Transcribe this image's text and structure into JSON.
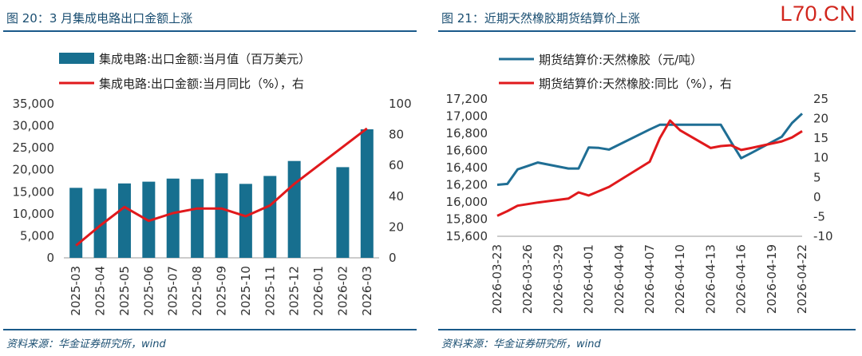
{
  "watermark": "L70.CN",
  "left": {
    "title": "图 20：3 月集成电路出口金额上涨",
    "source": "资料来源：华金证券研究所，wind"
  },
  "right": {
    "title": "图 21：近期天然橡胶期货结算价上涨",
    "source": "资料来源：华金证券研究所，wind"
  },
  "colors": {
    "bar": "#176f8f",
    "line_red": "#e0191c",
    "line_blue": "#1f6e94"
  },
  "chart_data": [
    {
      "type": "bar",
      "title": "",
      "categories": [
        "2025-03",
        "2025-04",
        "2025-05",
        "2025-06",
        "2025-07",
        "2025-08",
        "2025-09",
        "2025-10",
        "2025-11",
        "2025-12",
        "2026-01",
        "2026-02",
        "2026-03"
      ],
      "series": [
        {
          "name": "集成电路:出口金额:当月值（百万美元）",
          "kind": "bar",
          "axis": "left",
          "values": [
            15900,
            15700,
            16900,
            17300,
            18000,
            17900,
            19200,
            16800,
            18600,
            22000,
            null,
            20600,
            29200
          ]
        },
        {
          "name": "集成电路:出口金额:当月同比（%），右",
          "kind": "line",
          "axis": "right",
          "values": [
            8,
            21,
            33,
            24,
            29,
            32,
            32,
            27,
            34,
            48,
            null,
            null,
            84
          ]
        }
      ],
      "yleft": {
        "min": 0,
        "max": 35000,
        "ticks": [
          "0",
          "5,000",
          "10,000",
          "15,000",
          "20,000",
          "25,000",
          "30,000",
          "35,000"
        ]
      },
      "yright": {
        "min": 0,
        "max": 100,
        "ticks": [
          "0",
          "20",
          "40",
          "60",
          "80",
          "100"
        ]
      },
      "legend": "top-left",
      "grid": false
    },
    {
      "type": "line",
      "title": "",
      "x": [
        "2026-03-23",
        "2026-03-24",
        "2026-03-25",
        "2026-03-26",
        "2026-03-27",
        "2026-03-30",
        "2026-03-31",
        "2026-04-01",
        "2026-04-02",
        "2026-04-03",
        "2026-04-07",
        "2026-04-08",
        "2026-04-09",
        "2026-04-10",
        "2026-04-13",
        "2026-04-14",
        "2026-04-15",
        "2026-04-16",
        "2026-04-17",
        "2026-04-20",
        "2026-04-21",
        "2026-04-22"
      ],
      "x_ticks": [
        "2026-03-23",
        "2026-03-26",
        "2026-03-29",
        "2026-04-01",
        "2026-04-04",
        "2026-04-07",
        "2026-04-10",
        "2026-04-13",
        "2026-04-16",
        "2026-04-19",
        "2026-04-22"
      ],
      "x_start": "2026-03-23",
      "x_end": "2026-04-22",
      "series": [
        {
          "name": "期货结算价:天然橡胶（元/吨）",
          "axis": "left",
          "values": [
            16200,
            16210,
            16380,
            16420,
            16460,
            16390,
            16390,
            16635,
            16630,
            16610,
            16845,
            16900,
            16900,
            16900,
            16900,
            16900,
            16700,
            16510,
            16570,
            16760,
            16920,
            17030
          ]
        },
        {
          "name": "期货结算价:天然橡胶:同比（%），右",
          "axis": "right",
          "values": [
            -4.8,
            -3.6,
            -2.2,
            -1.8,
            -1.4,
            -0.4,
            1.2,
            0.4,
            1.5,
            2.6,
            9,
            15,
            19.5,
            17,
            12.5,
            13,
            13.2,
            12,
            12.5,
            14.2,
            15.2,
            16.8
          ]
        }
      ],
      "yleft": {
        "min": 15600,
        "max": 17200,
        "ticks": [
          "15,600",
          "15,800",
          "16,000",
          "16,200",
          "16,400",
          "16,600",
          "16,800",
          "17,000",
          "17,200"
        ]
      },
      "yright": {
        "min": -10,
        "max": 25,
        "ticks": [
          "-10",
          "-5",
          "0",
          "5",
          "10",
          "15",
          "20",
          "25"
        ]
      },
      "legend": "top-left",
      "grid": false
    }
  ]
}
